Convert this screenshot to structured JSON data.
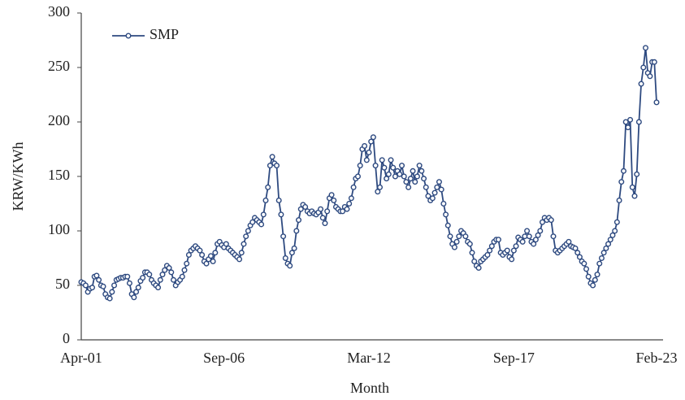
{
  "chart_data": {
    "type": "line",
    "xlabel": "Month",
    "ylabel": "KRW/KWh",
    "categories": [
      "Apr-01",
      null,
      null,
      null,
      null,
      null,
      null,
      null,
      null,
      null,
      null,
      null,
      null,
      null,
      null,
      null,
      null,
      null,
      null,
      null,
      null,
      null,
      null,
      null,
      null,
      null,
      null,
      null,
      null,
      null,
      null,
      null,
      null,
      null,
      null,
      null,
      null,
      null,
      null,
      null,
      null,
      null,
      null,
      null,
      null,
      null,
      null,
      null,
      null,
      null,
      null,
      null,
      null,
      null,
      null,
      null,
      null,
      null,
      null,
      null,
      null,
      null,
      null,
      null,
      null,
      "Sep-06",
      null,
      null,
      null,
      null,
      null,
      null,
      null,
      null,
      null,
      null,
      null,
      null,
      null,
      null,
      null,
      null,
      null,
      null,
      null,
      null,
      null,
      null,
      null,
      null,
      null,
      null,
      null,
      null,
      null,
      null,
      null,
      null,
      null,
      null,
      null,
      null,
      null,
      null,
      null,
      null,
      null,
      null,
      null,
      null,
      null,
      null,
      null,
      null,
      null,
      null,
      null,
      null,
      null,
      null,
      null,
      null,
      null,
      null,
      null,
      null,
      null,
      null,
      null,
      null,
      null,
      "Mar-12",
      null,
      null,
      null,
      null,
      null,
      null,
      null,
      null,
      null,
      null,
      null,
      null,
      null,
      null,
      null,
      null,
      null,
      null,
      null,
      null,
      null,
      null,
      null,
      null,
      null,
      null,
      null,
      null,
      null,
      null,
      null,
      null,
      null,
      null,
      null,
      null,
      null,
      null,
      null,
      null,
      null,
      null,
      null,
      null,
      null,
      null,
      null,
      null,
      null,
      null,
      null,
      null,
      null,
      null,
      null,
      null,
      null,
      null,
      null,
      null,
      null,
      null,
      null,
      null,
      null,
      "Sep-17",
      null,
      null,
      null,
      null,
      null,
      null,
      null,
      null,
      null,
      null,
      null,
      null,
      null,
      null,
      null,
      null,
      null,
      null,
      null,
      null,
      null,
      null,
      null,
      null,
      null,
      null,
      null,
      null,
      null,
      null,
      null,
      null,
      null,
      null,
      null,
      null,
      null,
      null,
      null,
      null,
      null,
      null,
      null,
      null,
      null,
      null,
      null,
      null,
      null,
      null,
      null,
      null,
      null,
      null,
      null,
      null,
      null,
      null,
      null,
      null,
      null,
      null,
      null,
      null,
      "Feb-23"
    ],
    "series": [
      {
        "name": "SMP",
        "color": "#2e4a80",
        "values": [
          53,
          52,
          50,
          44,
          47,
          48,
          58,
          59,
          55,
          50,
          49,
          42,
          39,
          38,
          44,
          50,
          55,
          56,
          57,
          57,
          58,
          58,
          52,
          42,
          39,
          44,
          48,
          54,
          57,
          62,
          62,
          60,
          55,
          52,
          50,
          48,
          55,
          60,
          64,
          68,
          66,
          62,
          55,
          50,
          53,
          55,
          58,
          64,
          70,
          78,
          82,
          84,
          86,
          84,
          82,
          78,
          72,
          70,
          74,
          77,
          72,
          80,
          88,
          90,
          87,
          85,
          88,
          84,
          82,
          80,
          78,
          76,
          74,
          80,
          88,
          95,
          100,
          105,
          108,
          112,
          110,
          108,
          106,
          115,
          128,
          140,
          160,
          168,
          162,
          160,
          128,
          115,
          95,
          75,
          70,
          68,
          80,
          84,
          100,
          110,
          120,
          124,
          122,
          118,
          116,
          118,
          116,
          115,
          117,
          120,
          112,
          107,
          118,
          130,
          133,
          128,
          122,
          120,
          118,
          118,
          122,
          120,
          125,
          130,
          140,
          148,
          150,
          160,
          175,
          178,
          165,
          172,
          182,
          186,
          160,
          136,
          140,
          165,
          158,
          148,
          152,
          165,
          158,
          150,
          155,
          152,
          160,
          150,
          145,
          140,
          148,
          155,
          145,
          150,
          160,
          155,
          148,
          140,
          132,
          128,
          130,
          135,
          140,
          145,
          138,
          125,
          115,
          105,
          95,
          88,
          85,
          90,
          95,
          100,
          98,
          95,
          90,
          88,
          80,
          72,
          68,
          66,
          72,
          74,
          76,
          78,
          82,
          86,
          90,
          92,
          92,
          80,
          78,
          80,
          82,
          76,
          74,
          82,
          86,
          94,
          92,
          90,
          95,
          100,
          95,
          90,
          88,
          92,
          96,
          100,
          108,
          112,
          110,
          112,
          110,
          95,
          82,
          80,
          82,
          84,
          86,
          88,
          90,
          86,
          85,
          84,
          80,
          76,
          72,
          70,
          65,
          58,
          52,
          50,
          55,
          60,
          70,
          75,
          80,
          84,
          88,
          92,
          96,
          100,
          108,
          128,
          145,
          155,
          200,
          195,
          202,
          140,
          132,
          152,
          200,
          235,
          250,
          268,
          245,
          242,
          255,
          255,
          218
        ]
      }
    ],
    "ylim": [
      0,
      300
    ],
    "yticks": [
      0,
      50,
      100,
      150,
      200,
      250,
      300
    ],
    "grid": false,
    "legend": "upper left"
  }
}
